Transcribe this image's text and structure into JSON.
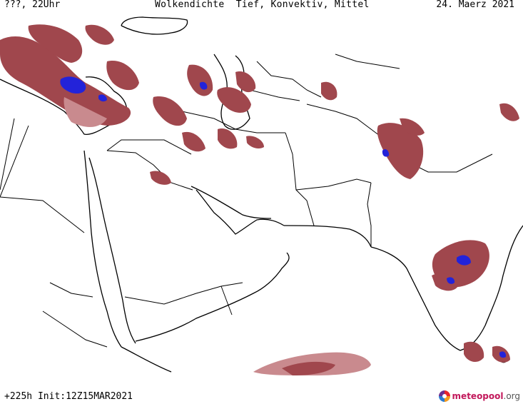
{
  "header": {
    "left": "???, 22Uhr",
    "title": "Wolkendichte  Tief, Konvektiv, Mittel",
    "date": "24. Maerz 2021"
  },
  "footer": {
    "run_info": "+225h Init:12Z15MAR2021"
  },
  "brand": {
    "name": "meteopool",
    "tld": ".org"
  },
  "colors": {
    "cloud_density": "#a0474d",
    "cloud_light": "#c98a8e",
    "convective": "#2323d9",
    "background": "#ffffff",
    "borders": "#000000"
  }
}
